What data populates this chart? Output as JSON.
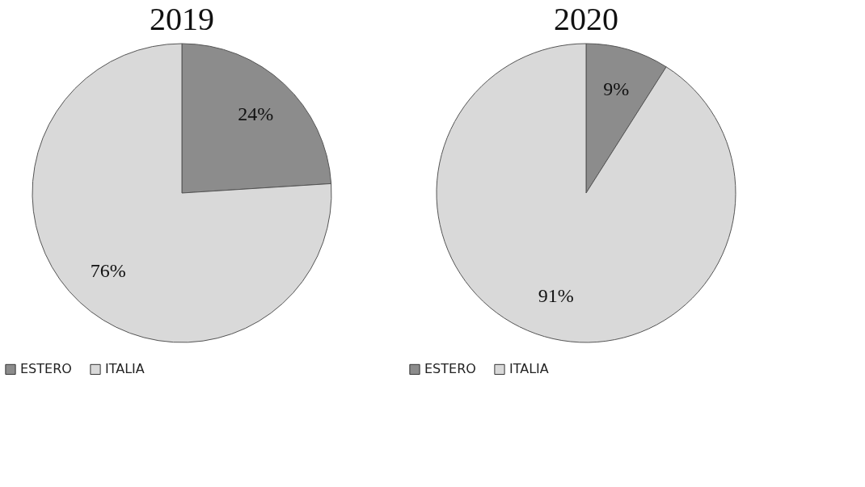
{
  "chart_data": [
    {
      "type": "pie",
      "title": "2019",
      "categories": [
        "ESTERO",
        "ITALIA"
      ],
      "values": [
        24,
        76
      ],
      "value_labels": [
        "24%",
        "76%"
      ],
      "colors": [
        "#8c8c8c",
        "#d9d9d9"
      ],
      "legend": "bottom left"
    },
    {
      "type": "pie",
      "title": "2020",
      "categories": [
        "ESTERO",
        "ITALIA"
      ],
      "values": [
        9,
        91
      ],
      "value_labels": [
        "9%",
        "91%"
      ],
      "colors": [
        "#8c8c8c",
        "#d9d9d9"
      ],
      "legend": "bottom left"
    }
  ]
}
